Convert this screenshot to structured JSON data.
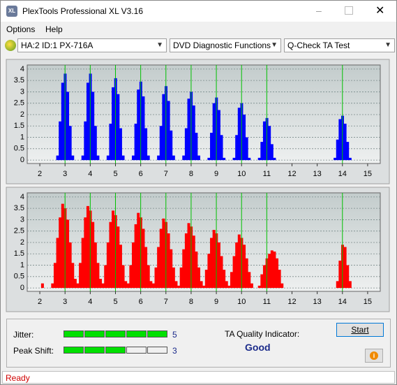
{
  "window": {
    "title": "PlexTools Professional XL V3.16"
  },
  "menu": [
    "Options",
    "Help"
  ],
  "toolbar": {
    "drive": "HA:2 ID:1  PX-716A",
    "function": "DVD Diagnostic Functions",
    "test": "Q-Check TA Test"
  },
  "chart_data": [
    {
      "type": "bar",
      "color": "#0000ff",
      "grid": true,
      "marker_color": "#00c000",
      "xlim": [
        1.5,
        15.5
      ],
      "ylim": [
        -0.15,
        4.18
      ],
      "xticks": [
        2,
        3,
        4,
        5,
        6,
        7,
        8,
        9,
        10,
        11,
        12,
        13,
        14,
        15
      ],
      "yticks": [
        0,
        0.5,
        1,
        1.5,
        2,
        2.5,
        3,
        3.5,
        4
      ],
      "markers": [
        3,
        4,
        5,
        6,
        7,
        8,
        9,
        10,
        11,
        14
      ],
      "x": [
        2.7,
        2.8,
        2.9,
        3.0,
        3.1,
        3.2,
        3.3,
        3.7,
        3.8,
        3.9,
        4.0,
        4.1,
        4.2,
        4.3,
        4.7,
        4.8,
        4.9,
        5.0,
        5.1,
        5.2,
        5.3,
        5.7,
        5.8,
        5.9,
        6.0,
        6.1,
        6.2,
        6.3,
        6.7,
        6.8,
        6.9,
        7.0,
        7.1,
        7.2,
        7.3,
        7.7,
        7.8,
        7.9,
        8.0,
        8.1,
        8.2,
        8.3,
        8.7,
        8.8,
        8.9,
        9.0,
        9.1,
        9.2,
        9.3,
        9.7,
        9.8,
        9.9,
        10.0,
        10.1,
        10.2,
        10.3,
        10.7,
        10.8,
        10.9,
        11.0,
        11.1,
        11.2,
        11.3,
        13.7,
        13.8,
        13.9,
        14.0,
        14.1,
        14.2,
        14.3
      ],
      "values": [
        0.2,
        1.7,
        3.4,
        3.8,
        3.0,
        1.5,
        0.2,
        0.2,
        1.7,
        3.4,
        3.8,
        3.0,
        1.5,
        0.2,
        0.2,
        1.6,
        3.2,
        3.6,
        2.9,
        1.4,
        0.2,
        0.2,
        1.6,
        3.1,
        3.45,
        2.8,
        1.4,
        0.2,
        0.2,
        1.5,
        2.9,
        3.25,
        2.6,
        1.3,
        0.2,
        0.2,
        1.4,
        2.7,
        3.0,
        2.4,
        1.2,
        0.2,
        0.1,
        1.2,
        2.5,
        2.75,
        2.2,
        1.1,
        0.1,
        0.1,
        1.1,
        2.3,
        2.5,
        2.0,
        1.0,
        0.1,
        0.1,
        0.8,
        1.7,
        1.85,
        1.5,
        0.7,
        0.1,
        0.1,
        0.9,
        1.8,
        1.95,
        1.6,
        0.8,
        0.1
      ]
    },
    {
      "type": "bar",
      "color": "#ff0000",
      "grid": true,
      "marker_color": "#00c000",
      "xlim": [
        1.5,
        15.5
      ],
      "ylim": [
        -0.15,
        4.18
      ],
      "xticks": [
        2,
        3,
        4,
        5,
        6,
        7,
        8,
        9,
        10,
        11,
        12,
        13,
        14,
        15
      ],
      "yticks": [
        0,
        0.5,
        1,
        1.5,
        2,
        2.5,
        3,
        3.5,
        4
      ],
      "markers": [
        3,
        4,
        5,
        6,
        7,
        8,
        9,
        10,
        11,
        14
      ],
      "x": [
        2.1,
        2.5,
        2.6,
        2.7,
        2.8,
        2.9,
        3.0,
        3.1,
        3.2,
        3.3,
        3.4,
        3.5,
        3.6,
        3.7,
        3.8,
        3.9,
        4.0,
        4.1,
        4.2,
        4.3,
        4.4,
        4.5,
        4.6,
        4.7,
        4.8,
        4.9,
        5.0,
        5.1,
        5.2,
        5.3,
        5.4,
        5.5,
        5.6,
        5.7,
        5.8,
        5.9,
        6.0,
        6.1,
        6.2,
        6.3,
        6.4,
        6.5,
        6.6,
        6.7,
        6.8,
        6.9,
        7.0,
        7.1,
        7.2,
        7.3,
        7.4,
        7.5,
        7.6,
        7.7,
        7.8,
        7.9,
        8.0,
        8.1,
        8.2,
        8.3,
        8.4,
        8.5,
        8.6,
        8.7,
        8.8,
        8.9,
        9.0,
        9.1,
        9.2,
        9.3,
        9.4,
        9.5,
        9.6,
        9.7,
        9.8,
        9.9,
        10.0,
        10.1,
        10.2,
        10.3,
        10.4,
        10.7,
        10.8,
        10.9,
        11.0,
        11.1,
        11.2,
        11.3,
        11.4,
        11.5,
        11.6,
        13.8,
        13.9,
        14.0,
        14.1,
        14.2,
        14.3
      ],
      "values": [
        0.2,
        0.2,
        1.1,
        2.2,
        3.1,
        3.7,
        3.5,
        3.0,
        2.0,
        1.1,
        0.4,
        0.2,
        1.1,
        2.2,
        3.1,
        3.6,
        3.4,
        2.9,
        2.0,
        1.1,
        0.4,
        0.2,
        1.0,
        2.0,
        2.9,
        3.4,
        3.2,
        2.7,
        1.9,
        1.0,
        0.3,
        0.2,
        1.0,
        2.0,
        2.8,
        3.3,
        3.1,
        2.6,
        1.8,
        1.0,
        0.3,
        0.2,
        0.9,
        1.8,
        2.6,
        3.05,
        2.9,
        2.4,
        1.7,
        0.9,
        0.3,
        0.1,
        0.9,
        1.7,
        2.4,
        2.85,
        2.7,
        2.3,
        1.6,
        0.9,
        0.3,
        0.1,
        0.8,
        1.5,
        2.2,
        2.55,
        2.4,
        2.0,
        1.4,
        0.8,
        0.3,
        0.1,
        0.7,
        1.4,
        2.0,
        2.35,
        2.2,
        1.9,
        1.3,
        0.7,
        0.2,
        0.1,
        0.6,
        1.0,
        1.3,
        1.5,
        1.65,
        1.6,
        1.3,
        0.8,
        0.2,
        0.3,
        1.2,
        1.9,
        1.8,
        1.0,
        0.3
      ]
    }
  ],
  "indicators": [
    {
      "label": "Jitter:",
      "value": 5
    },
    {
      "label": "Peak Shift:",
      "value": 3
    }
  ],
  "quality": {
    "label": "TA Quality Indicator:",
    "value": "Good"
  },
  "buttons": {
    "start": "Start"
  },
  "status": "Ready"
}
